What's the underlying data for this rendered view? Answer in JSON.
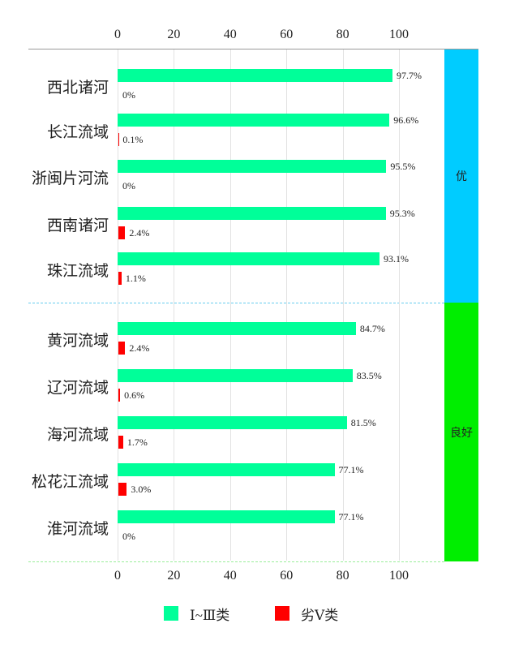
{
  "chart_data": {
    "type": "bar",
    "orientation": "horizontal",
    "xlim": [
      0,
      100
    ],
    "xticks": [
      "0",
      "20",
      "40",
      "60",
      "80",
      "100"
    ],
    "grid": true,
    "legend_placement": "bottom",
    "categories": [
      "西北诸河",
      "长江流域",
      "浙闽片河流",
      "西南诸河",
      "珠江流域",
      "黄河流域",
      "辽河流域",
      "海河流域",
      "松花江流域",
      "淮河流域"
    ],
    "series": [
      {
        "name": "Ⅰ~Ⅲ类",
        "color": "#00ff99",
        "values": [
          97.7,
          96.6,
          95.5,
          95.3,
          93.1,
          84.7,
          83.5,
          81.5,
          77.1,
          77.1
        ],
        "labels": [
          "97.7%",
          "96.6%",
          "95.5%",
          "95.3%",
          "93.1%",
          "84.7%",
          "83.5%",
          "81.5%",
          "77.1%",
          "77.1%"
        ]
      },
      {
        "name": "劣Ⅴ类",
        "color": "#ff0000",
        "values": [
          0,
          0.1,
          0,
          2.4,
          1.1,
          2.4,
          0.6,
          1.7,
          3.0,
          0
        ],
        "labels": [
          "0%",
          "0.1%",
          "0%",
          "2.4%",
          "1.1%",
          "2.4%",
          "0.6%",
          "1.7%",
          "3.0%",
          "0%"
        ]
      }
    ],
    "groups": [
      {
        "label": "优",
        "color": "#00ccff",
        "count": 5
      },
      {
        "label": "良好",
        "color": "#00ee00",
        "count": 5
      }
    ]
  }
}
